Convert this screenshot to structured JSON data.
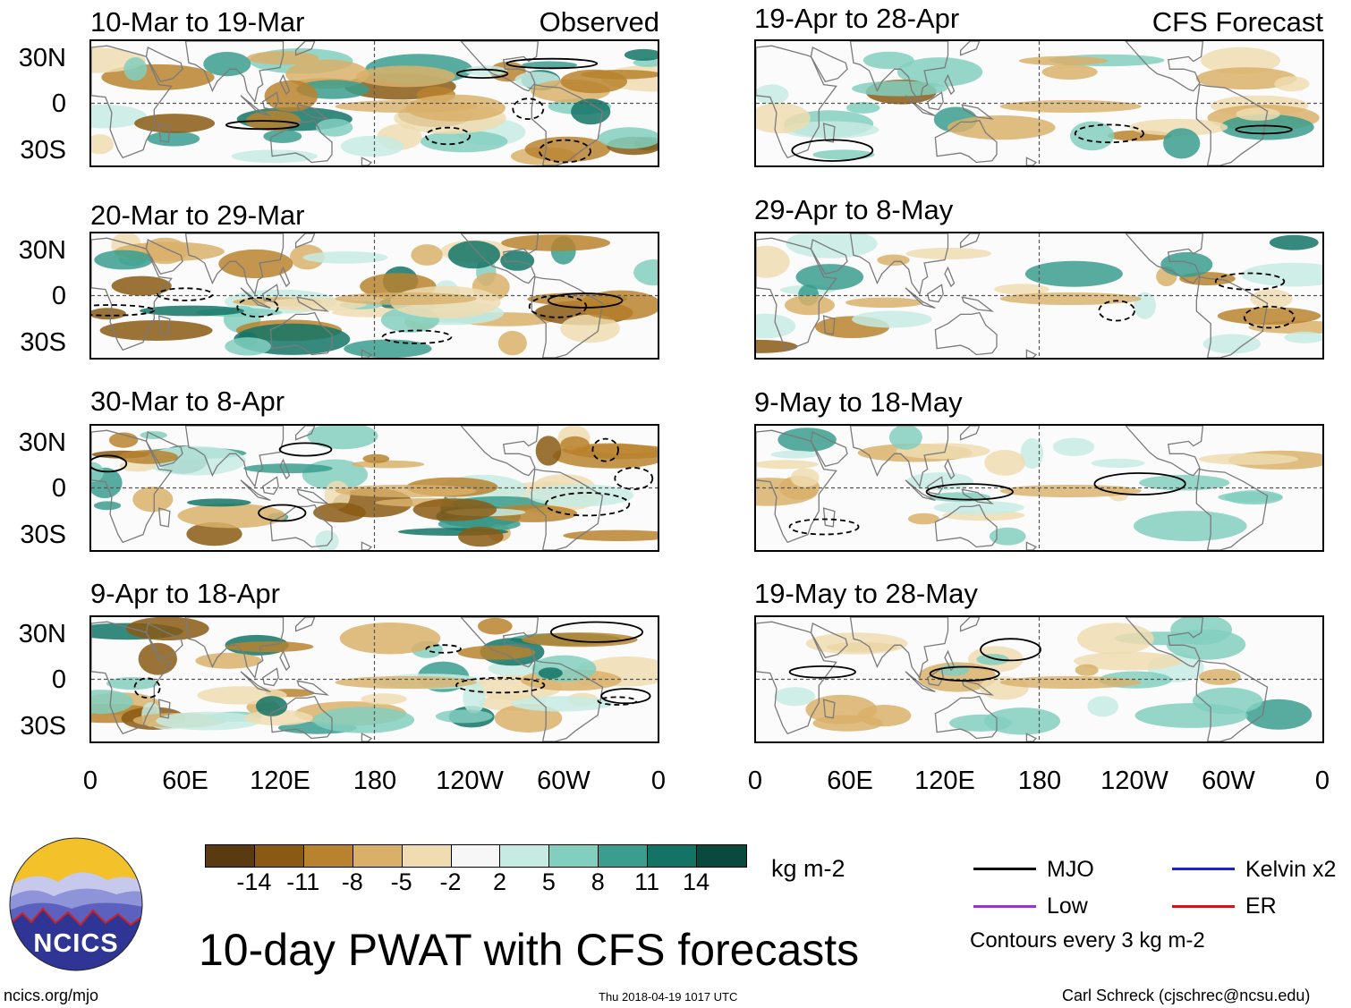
{
  "title": "10-day PWAT with CFS forecasts",
  "observed_label": "Observed",
  "forecast_label": "CFS Forecast",
  "panels": [
    {
      "label": "10-Mar to 19-Mar",
      "column": "observed"
    },
    {
      "label": "20-Mar to 29-Mar",
      "column": "observed"
    },
    {
      "label": "30-Mar to 8-Apr",
      "column": "observed"
    },
    {
      "label": "9-Apr to 18-Apr",
      "column": "observed"
    },
    {
      "label": "19-Apr to 28-Apr",
      "column": "forecast"
    },
    {
      "label": "29-Apr to 8-May",
      "column": "forecast"
    },
    {
      "label": "9-May to 18-May",
      "column": "forecast"
    },
    {
      "label": "19-May to 28-May",
      "column": "forecast"
    }
  ],
  "y_labels": [
    "30N",
    "0",
    "30S"
  ],
  "x_labels": [
    "0",
    "60E",
    "120E",
    "180",
    "120W",
    "60W",
    "0"
  ],
  "colorbar": {
    "units": "kg m-2",
    "ticks": [
      "-14",
      "-11",
      "-8",
      "-5",
      "-2",
      "2",
      "5",
      "8",
      "11",
      "14"
    ],
    "colors": [
      "#5a3a10",
      "#8a5a14",
      "#b8822e",
      "#d9b06a",
      "#efdcb0",
      "#f7f7f7",
      "#c6ebe3",
      "#82cfc0",
      "#3a9d8e",
      "#137466",
      "#0a4a3e"
    ]
  },
  "legend": {
    "items": [
      {
        "label": "MJO",
        "color": "#000000"
      },
      {
        "label": "Kelvin x2",
        "color": "#1a22cc"
      },
      {
        "label": "Low",
        "color": "#9b30d9"
      },
      {
        "label": "ER",
        "color": "#dd1111"
      }
    ],
    "note": "Contours every 3 kg m-2"
  },
  "logo_text": "NCICS",
  "footer": {
    "url": "ncics.org/mjo",
    "timestamp": "Thu 2018-04-19 1017 UTC",
    "credit": "Carl Schreck (cjschrec@ncsu.edu)"
  }
}
